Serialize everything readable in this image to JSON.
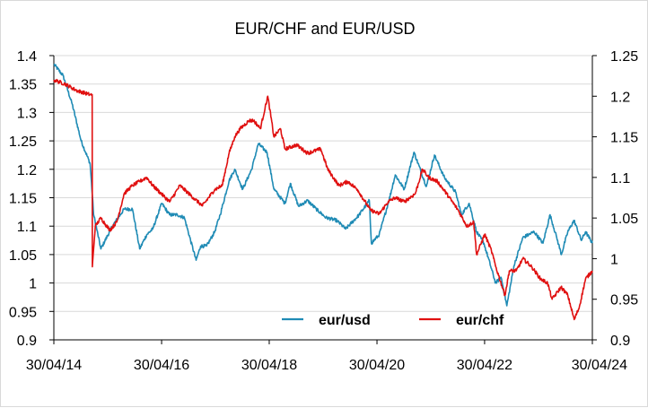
{
  "chart_data": {
    "type": "line",
    "title": "EUR/CHF and EUR/USD",
    "xlabel": "",
    "ylabel_left": "",
    "ylabel_right": "",
    "x_ticks": [
      "30/04/14",
      "30/04/16",
      "30/04/18",
      "30/04/20",
      "30/04/22",
      "30/04/24"
    ],
    "x_range": [
      "30/04/14",
      "30/04/24"
    ],
    "y_left": {
      "min": 0.9,
      "max": 1.4,
      "step": 0.05,
      "ticks": [
        "0.9",
        "0.95",
        "1",
        "1.05",
        "1.1",
        "1.15",
        "1.2",
        "1.25",
        "1.3",
        "1.35",
        "1.4"
      ]
    },
    "y_right": {
      "min": 0.9,
      "max": 1.25,
      "step": 0.05,
      "ticks": [
        "0.9",
        "0.95",
        "1",
        "1.05",
        "1.1",
        "1.15",
        "1.2",
        "1.25"
      ]
    },
    "grid": "horizontal",
    "legend_position": "bottom-right inside plot",
    "series": [
      {
        "name": "eur/usd",
        "axis": "left",
        "color": "#1f8bb5",
        "points": [
          [
            "2014-04-30",
            1.385
          ],
          [
            "2014-07-01",
            1.365
          ],
          [
            "2014-09-01",
            1.315
          ],
          [
            "2014-11-01",
            1.25
          ],
          [
            "2015-01-01",
            1.21
          ],
          [
            "2015-01-25",
            1.12
          ],
          [
            "2015-03-15",
            1.06
          ],
          [
            "2015-06-01",
            1.1
          ],
          [
            "2015-08-20",
            1.13
          ],
          [
            "2015-10-15",
            1.13
          ],
          [
            "2015-12-03",
            1.06
          ],
          [
            "2016-01-20",
            1.085
          ],
          [
            "2016-03-01",
            1.095
          ],
          [
            "2016-05-01",
            1.14
          ],
          [
            "2016-06-23",
            1.12
          ],
          [
            "2016-08-15",
            1.12
          ],
          [
            "2016-10-01",
            1.115
          ],
          [
            "2016-12-20",
            1.04
          ],
          [
            "2017-01-20",
            1.065
          ],
          [
            "2017-03-01",
            1.065
          ],
          [
            "2017-04-25",
            1.09
          ],
          [
            "2017-06-01",
            1.12
          ],
          [
            "2017-08-01",
            1.18
          ],
          [
            "2017-09-08",
            1.2
          ],
          [
            "2017-11-01",
            1.165
          ],
          [
            "2018-01-01",
            1.2
          ],
          [
            "2018-02-15",
            1.245
          ],
          [
            "2018-04-15",
            1.23
          ],
          [
            "2018-06-01",
            1.165
          ],
          [
            "2018-08-15",
            1.14
          ],
          [
            "2018-09-20",
            1.175
          ],
          [
            "2018-11-15",
            1.135
          ],
          [
            "2019-01-15",
            1.145
          ],
          [
            "2019-03-15",
            1.13
          ],
          [
            "2019-05-20",
            1.115
          ],
          [
            "2019-08-01",
            1.11
          ],
          [
            "2019-10-01",
            1.095
          ],
          [
            "2019-12-31",
            1.12
          ],
          [
            "2020-03-09",
            1.145
          ],
          [
            "2020-03-23",
            1.07
          ],
          [
            "2020-05-15",
            1.085
          ],
          [
            "2020-07-15",
            1.14
          ],
          [
            "2020-09-01",
            1.19
          ],
          [
            "2020-11-01",
            1.165
          ],
          [
            "2021-01-06",
            1.23
          ],
          [
            "2021-03-31",
            1.17
          ],
          [
            "2021-05-25",
            1.225
          ],
          [
            "2021-08-01",
            1.185
          ],
          [
            "2021-10-15",
            1.16
          ],
          [
            "2021-11-24",
            1.12
          ],
          [
            "2022-01-15",
            1.14
          ],
          [
            "2022-03-07",
            1.09
          ],
          [
            "2022-04-25",
            1.07
          ],
          [
            "2022-07-14",
            1.0
          ],
          [
            "2022-08-20",
            1.01
          ],
          [
            "2022-09-28",
            0.96
          ],
          [
            "2022-11-15",
            1.03
          ],
          [
            "2023-01-15",
            1.08
          ],
          [
            "2023-04-01",
            1.09
          ],
          [
            "2023-05-31",
            1.07
          ],
          [
            "2023-07-18",
            1.12
          ],
          [
            "2023-09-01",
            1.08
          ],
          [
            "2023-10-03",
            1.05
          ],
          [
            "2023-11-15",
            1.09
          ],
          [
            "2023-12-28",
            1.11
          ],
          [
            "2024-02-15",
            1.075
          ],
          [
            "2024-03-15",
            1.09
          ],
          [
            "2024-04-30",
            1.07
          ]
        ]
      },
      {
        "name": "eur/chf",
        "axis": "right",
        "color": "#e01010",
        "points": [
          [
            "2014-04-30",
            1.22
          ],
          [
            "2014-07-15",
            1.215
          ],
          [
            "2014-10-01",
            1.207
          ],
          [
            "2014-12-31",
            1.202
          ],
          [
            "2015-01-15",
            1.202
          ],
          [
            "2015-01-16",
            0.99
          ],
          [
            "2015-01-20",
            1.0
          ],
          [
            "2015-02-05",
            1.04
          ],
          [
            "2015-03-15",
            1.05
          ],
          [
            "2015-05-15",
            1.035
          ],
          [
            "2015-07-01",
            1.045
          ],
          [
            "2015-08-20",
            1.08
          ],
          [
            "2015-10-15",
            1.09
          ],
          [
            "2016-01-20",
            1.1
          ],
          [
            "2016-03-01",
            1.09
          ],
          [
            "2016-06-24",
            1.07
          ],
          [
            "2016-09-01",
            1.09
          ],
          [
            "2016-12-01",
            1.075
          ],
          [
            "2017-02-01",
            1.065
          ],
          [
            "2017-04-25",
            1.085
          ],
          [
            "2017-06-15",
            1.09
          ],
          [
            "2017-08-01",
            1.13
          ],
          [
            "2017-09-08",
            1.15
          ],
          [
            "2017-10-15",
            1.16
          ],
          [
            "2017-12-15",
            1.17
          ],
          [
            "2018-01-15",
            1.17
          ],
          [
            "2018-03-01",
            1.16
          ],
          [
            "2018-04-20",
            1.2
          ],
          [
            "2018-06-01",
            1.15
          ],
          [
            "2018-07-15",
            1.16
          ],
          [
            "2018-08-15",
            1.135
          ],
          [
            "2018-11-01",
            1.14
          ],
          [
            "2019-01-15",
            1.13
          ],
          [
            "2019-04-15",
            1.135
          ],
          [
            "2019-06-01",
            1.11
          ],
          [
            "2019-08-15",
            1.09
          ],
          [
            "2019-10-15",
            1.095
          ],
          [
            "2019-12-20",
            1.085
          ],
          [
            "2020-03-15",
            1.06
          ],
          [
            "2020-05-15",
            1.055
          ],
          [
            "2020-07-15",
            1.07
          ],
          [
            "2020-09-01",
            1.075
          ],
          [
            "2020-11-01",
            1.07
          ],
          [
            "2021-01-15",
            1.08
          ],
          [
            "2021-03-05",
            1.11
          ],
          [
            "2021-04-15",
            1.1
          ],
          [
            "2021-06-15",
            1.095
          ],
          [
            "2021-08-15",
            1.08
          ],
          [
            "2021-11-01",
            1.06
          ],
          [
            "2021-12-31",
            1.04
          ],
          [
            "2022-02-15",
            1.045
          ],
          [
            "2022-03-07",
            1.005
          ],
          [
            "2022-05-01",
            1.03
          ],
          [
            "2022-06-15",
            1.01
          ],
          [
            "2022-07-15",
            0.99
          ],
          [
            "2022-09-15",
            0.955
          ],
          [
            "2022-10-15",
            0.985
          ],
          [
            "2022-12-01",
            0.985
          ],
          [
            "2023-01-15",
            1.0
          ],
          [
            "2023-03-15",
            0.99
          ],
          [
            "2023-05-15",
            0.975
          ],
          [
            "2023-07-01",
            0.97
          ],
          [
            "2023-08-01",
            0.95
          ],
          [
            "2023-10-01",
            0.965
          ],
          [
            "2023-11-15",
            0.955
          ],
          [
            "2023-12-29",
            0.925
          ],
          [
            "2024-02-01",
            0.94
          ],
          [
            "2024-03-15",
            0.975
          ],
          [
            "2024-04-30",
            0.985
          ]
        ]
      }
    ]
  }
}
